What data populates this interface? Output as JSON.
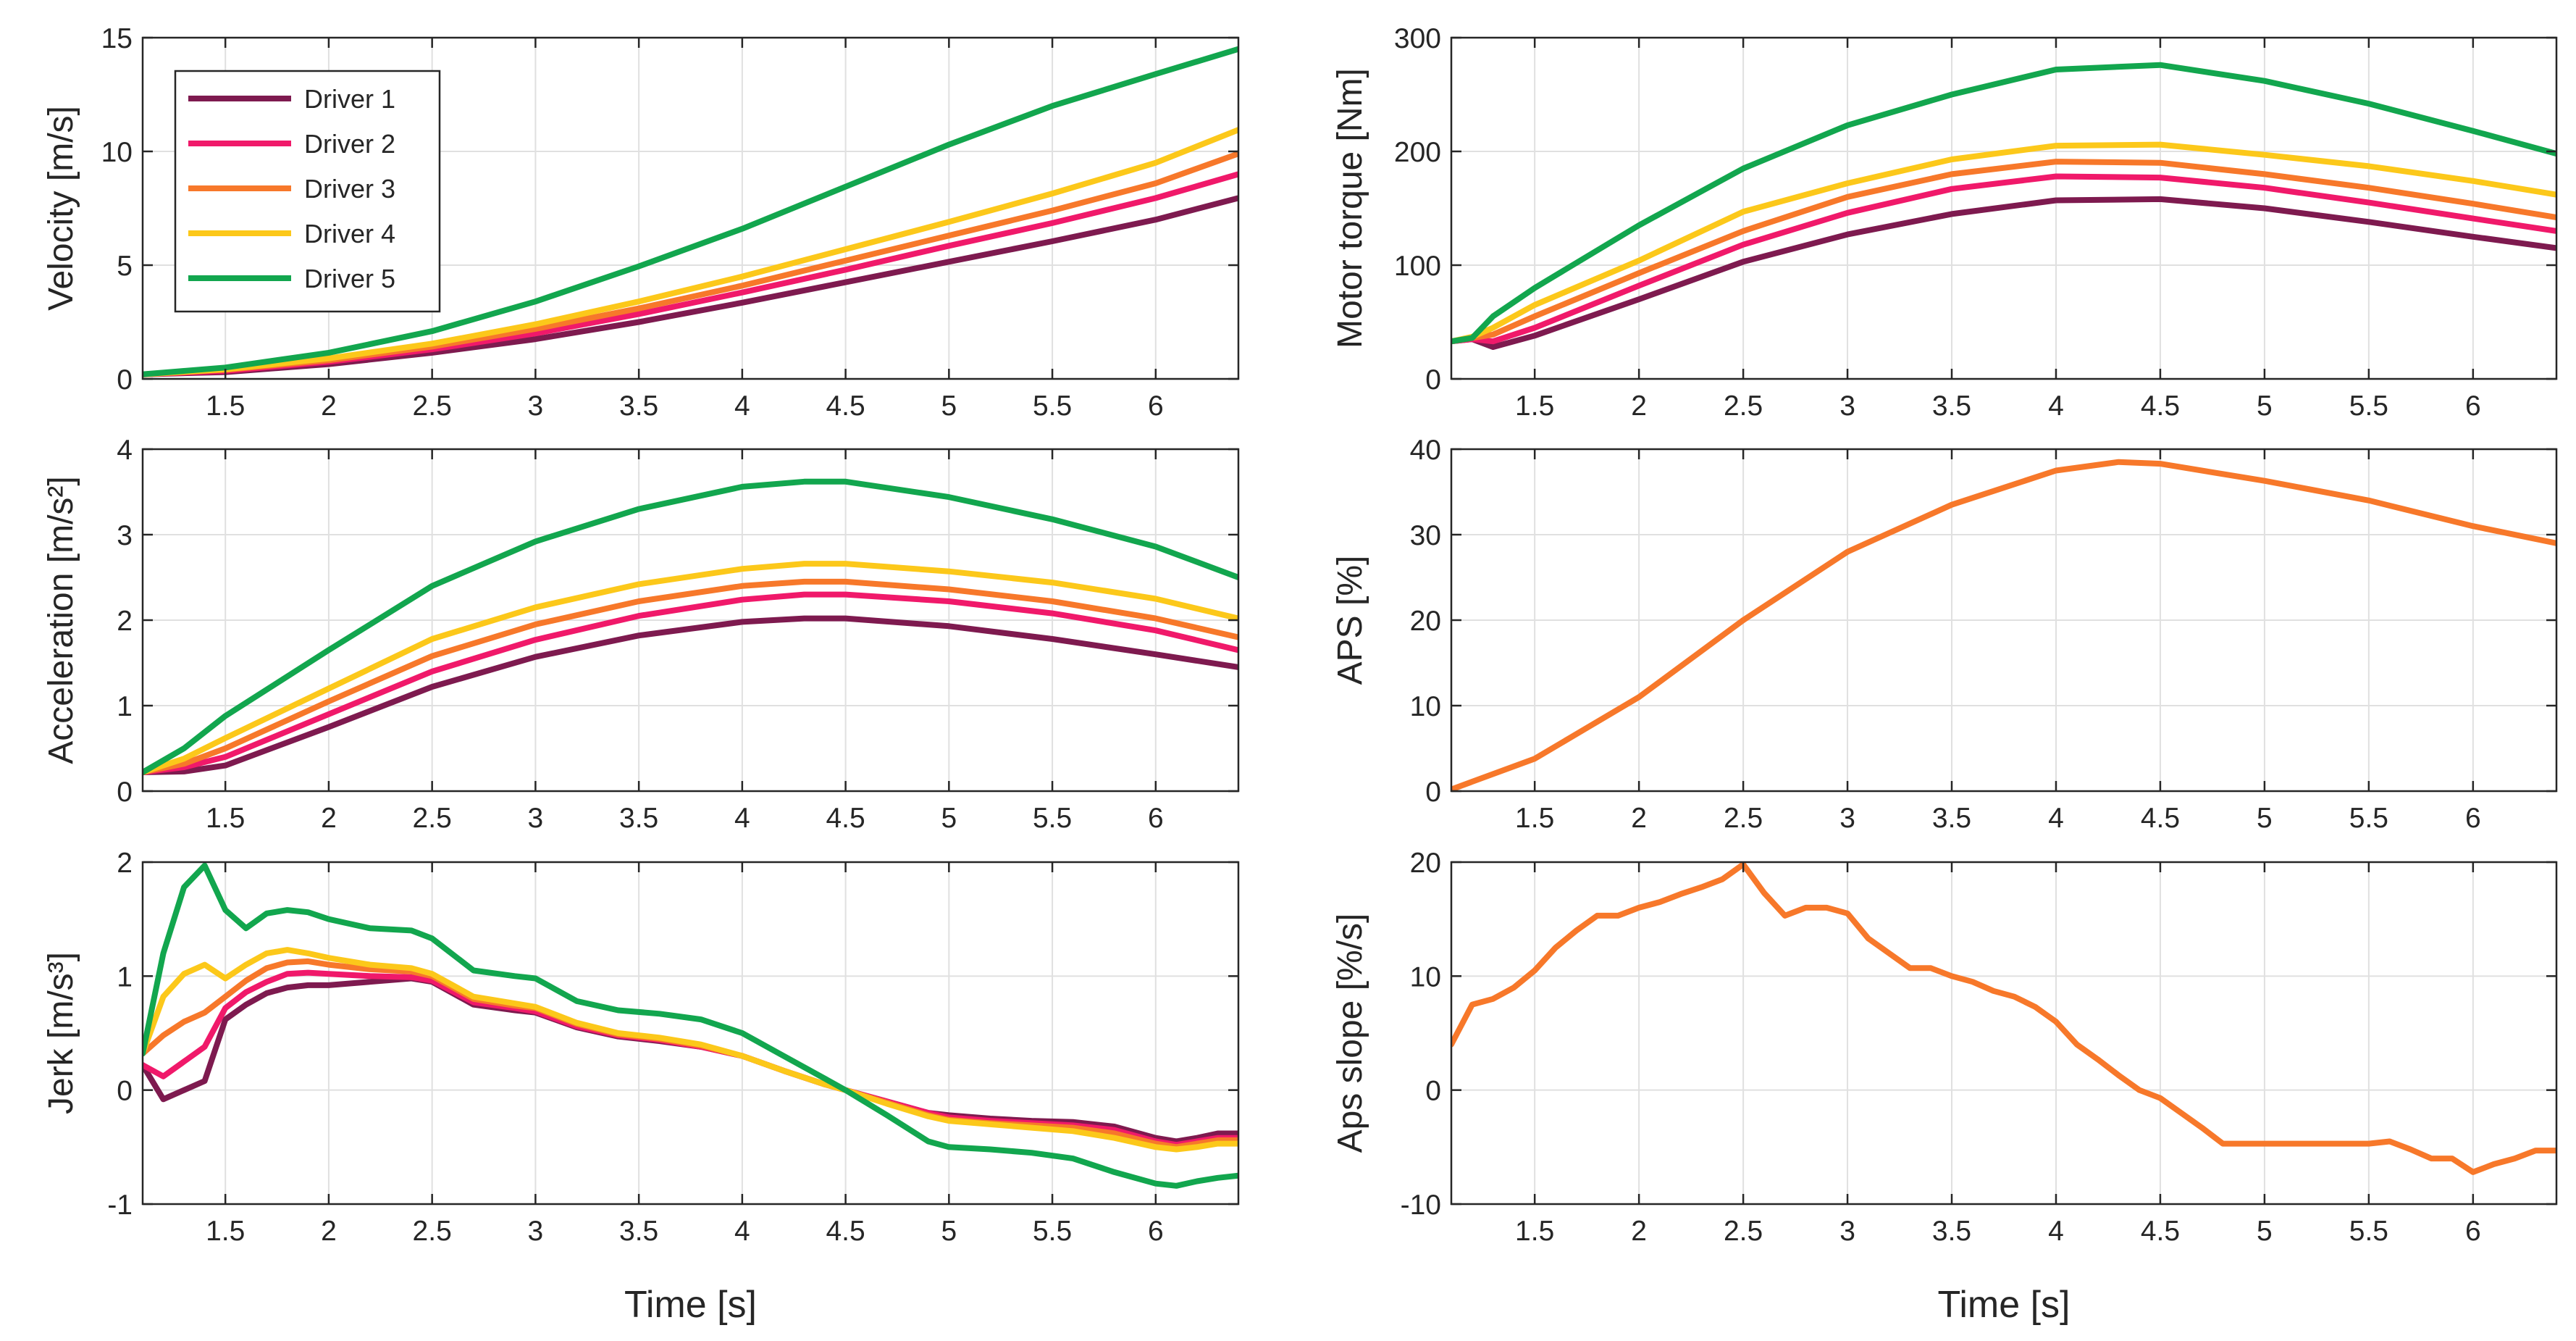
{
  "chart_data": [
    {
      "type": "line",
      "ylabel": "Velocity [m/s]",
      "xlabel": "",
      "xlim": [
        1.1,
        6.4
      ],
      "ylim": [
        0,
        15
      ],
      "xticks": [
        "1.5",
        "2",
        "2.5",
        "3",
        "3.5",
        "4",
        "4.5",
        "5",
        "5.5",
        "6"
      ],
      "yticks": [
        "0",
        "5",
        "10",
        "15"
      ],
      "grid": true,
      "legend": "top-left",
      "x": [
        1.1,
        1.5,
        2,
        2.5,
        3,
        3.5,
        4,
        4.5,
        5,
        5.5,
        6,
        6.4
      ],
      "series": [
        {
          "name": "Driver 1",
          "color": "#7e1a4f",
          "values": [
            0.2,
            0.3,
            0.65,
            1.15,
            1.75,
            2.5,
            3.35,
            4.25,
            5.15,
            6.05,
            7.0,
            7.95
          ]
        },
        {
          "name": "Driver 2",
          "color": "#f0196a",
          "values": [
            0.2,
            0.35,
            0.75,
            1.3,
            2.0,
            2.85,
            3.8,
            4.8,
            5.85,
            6.85,
            7.95,
            9.0
          ]
        },
        {
          "name": "Driver 3",
          "color": "#f7782a",
          "values": [
            0.2,
            0.4,
            0.82,
            1.42,
            2.2,
            3.1,
            4.1,
            5.2,
            6.3,
            7.4,
            8.6,
            9.9
          ]
        },
        {
          "name": "Driver 4",
          "color": "#fcc81a",
          "values": [
            0.2,
            0.42,
            0.9,
            1.55,
            2.4,
            3.4,
            4.5,
            5.7,
            6.9,
            8.15,
            9.5,
            10.95
          ]
        },
        {
          "name": "Driver 5",
          "color": "#12a64e",
          "values": [
            0.2,
            0.5,
            1.15,
            2.1,
            3.4,
            4.95,
            6.6,
            8.45,
            10.3,
            12.0,
            13.4,
            14.5
          ]
        }
      ]
    },
    {
      "type": "line",
      "ylabel": "Motor torque [Nm]",
      "xlabel": "",
      "xlim": [
        1.1,
        6.4
      ],
      "ylim": [
        0,
        300
      ],
      "xticks": [
        "1.5",
        "2",
        "2.5",
        "3",
        "3.5",
        "4",
        "4.5",
        "5",
        "5.5",
        "6"
      ],
      "yticks": [
        "0",
        "100",
        "200",
        "300"
      ],
      "grid": true,
      "x": [
        1.1,
        1.2,
        1.3,
        1.5,
        2,
        2.5,
        3,
        3.5,
        4,
        4.5,
        5,
        5.5,
        6,
        6.4
      ],
      "series": [
        {
          "name": "Driver 1",
          "color": "#7e1a4f",
          "values": [
            33,
            35,
            28,
            38,
            70,
            103,
            127,
            145,
            157,
            158,
            150,
            138,
            125,
            115
          ]
        },
        {
          "name": "Driver 2",
          "color": "#f0196a",
          "values": [
            33,
            35,
            33,
            45,
            82,
            118,
            146,
            167,
            178,
            177,
            168,
            155,
            141,
            130
          ]
        },
        {
          "name": "Driver 3",
          "color": "#f7782a",
          "values": [
            33,
            36,
            39,
            55,
            93,
            130,
            160,
            180,
            191,
            190,
            180,
            168,
            154,
            142
          ]
        },
        {
          "name": "Driver 4",
          "color": "#fcc81a",
          "values": [
            33,
            37,
            45,
            65,
            104,
            147,
            172,
            193,
            205,
            206,
            197,
            187,
            174,
            162
          ]
        },
        {
          "name": "Driver 5",
          "color": "#12a64e",
          "values": [
            33,
            36,
            55,
            80,
            135,
            185,
            223,
            250,
            272,
            276,
            262,
            242,
            218,
            198
          ]
        }
      ]
    },
    {
      "type": "line",
      "ylabel": "Acceleration [m/s²]",
      "xlabel": "",
      "xlim": [
        1.1,
        6.4
      ],
      "ylim": [
        0,
        4
      ],
      "xticks": [
        "1.5",
        "2",
        "2.5",
        "3",
        "3.5",
        "4",
        "4.5",
        "5",
        "5.5",
        "6"
      ],
      "yticks": [
        "0",
        "1",
        "2",
        "3",
        "4"
      ],
      "grid": true,
      "x": [
        1.1,
        1.3,
        1.5,
        2,
        2.5,
        3,
        3.5,
        4,
        4.3,
        4.5,
        5,
        5.5,
        6,
        6.4
      ],
      "series": [
        {
          "name": "Driver 1",
          "color": "#7e1a4f",
          "values": [
            0.22,
            0.23,
            0.3,
            0.75,
            1.22,
            1.57,
            1.82,
            1.98,
            2.02,
            2.02,
            1.93,
            1.78,
            1.6,
            1.45
          ]
        },
        {
          "name": "Driver 2",
          "color": "#f0196a",
          "values": [
            0.22,
            0.28,
            0.4,
            0.9,
            1.4,
            1.77,
            2.05,
            2.24,
            2.3,
            2.3,
            2.22,
            2.08,
            1.88,
            1.65
          ]
        },
        {
          "name": "Driver 3",
          "color": "#f7782a",
          "values": [
            0.22,
            0.32,
            0.5,
            1.05,
            1.58,
            1.95,
            2.22,
            2.4,
            2.45,
            2.45,
            2.36,
            2.22,
            2.02,
            1.8
          ]
        },
        {
          "name": "Driver 4",
          "color": "#fcc81a",
          "values": [
            0.22,
            0.38,
            0.62,
            1.2,
            1.78,
            2.15,
            2.42,
            2.6,
            2.66,
            2.66,
            2.57,
            2.44,
            2.25,
            2.02
          ]
        },
        {
          "name": "Driver 5",
          "color": "#12a64e",
          "values": [
            0.22,
            0.5,
            0.88,
            1.65,
            2.4,
            2.92,
            3.3,
            3.56,
            3.62,
            3.62,
            3.44,
            3.18,
            2.86,
            2.5
          ]
        }
      ]
    },
    {
      "type": "line",
      "ylabel": "APS [%]",
      "xlabel": "",
      "xlim": [
        1.1,
        6.4
      ],
      "ylim": [
        0,
        40
      ],
      "xticks": [
        "1.5",
        "2",
        "2.5",
        "3",
        "3.5",
        "4",
        "4.5",
        "5",
        "5.5",
        "6"
      ],
      "yticks": [
        "0",
        "10",
        "20",
        "30",
        "40"
      ],
      "grid": true,
      "x": [
        1.1,
        1.5,
        2,
        2.5,
        3,
        3.5,
        4,
        4.3,
        4.5,
        5,
        5.5,
        6,
        6.4
      ],
      "series": [
        {
          "name": "",
          "color": "#f7782a",
          "values": [
            0.2,
            3.8,
            11,
            20,
            28,
            33.5,
            37.5,
            38.5,
            38.3,
            36.3,
            34,
            31,
            29
          ]
        }
      ]
    },
    {
      "type": "line",
      "ylabel": "Jerk [m/s³]",
      "xlabel": "Time [s]",
      "xlim": [
        1.1,
        6.4
      ],
      "ylim": [
        -1,
        2
      ],
      "xticks": [
        "1.5",
        "2",
        "2.5",
        "3",
        "3.5",
        "4",
        "4.5",
        "5",
        "5.5",
        "6"
      ],
      "yticks": [
        "-1",
        "0",
        "1",
        "2"
      ],
      "grid": true,
      "x": [
        1.1,
        1.2,
        1.3,
        1.4,
        1.5,
        1.6,
        1.7,
        1.8,
        1.9,
        2,
        2.2,
        2.4,
        2.5,
        2.7,
        2.9,
        3,
        3.2,
        3.4,
        3.6,
        3.8,
        4,
        4.2,
        4.4,
        4.5,
        4.7,
        4.9,
        5,
        5.2,
        5.4,
        5.6,
        5.8,
        6,
        6.1,
        6.2,
        6.3,
        6.4
      ],
      "series": [
        {
          "name": "Driver 1",
          "color": "#7e1a4f",
          "values": [
            0.22,
            -0.08,
            0.0,
            0.08,
            0.62,
            0.75,
            0.85,
            0.9,
            0.92,
            0.92,
            0.95,
            0.98,
            0.95,
            0.75,
            0.7,
            0.68,
            0.55,
            0.47,
            0.43,
            0.38,
            0.3,
            0.17,
            0.05,
            0.0,
            -0.1,
            -0.2,
            -0.22,
            -0.25,
            -0.27,
            -0.28,
            -0.32,
            -0.42,
            -0.45,
            -0.42,
            -0.38,
            -0.38
          ]
        },
        {
          "name": "Driver 2",
          "color": "#f0196a",
          "values": [
            0.22,
            0.12,
            0.25,
            0.38,
            0.72,
            0.86,
            0.95,
            1.02,
            1.03,
            1.02,
            1.0,
            0.99,
            0.96,
            0.77,
            0.72,
            0.69,
            0.56,
            0.48,
            0.44,
            0.38,
            0.3,
            0.17,
            0.05,
            0.0,
            -0.1,
            -0.2,
            -0.24,
            -0.27,
            -0.29,
            -0.31,
            -0.35,
            -0.45,
            -0.48,
            -0.45,
            -0.42,
            -0.42
          ]
        },
        {
          "name": "Driver 3",
          "color": "#f7782a",
          "values": [
            0.32,
            0.48,
            0.6,
            0.68,
            0.82,
            0.96,
            1.07,
            1.12,
            1.13,
            1.1,
            1.06,
            1.04,
            1.0,
            0.8,
            0.74,
            0.72,
            0.58,
            0.49,
            0.45,
            0.39,
            0.3,
            0.17,
            0.05,
            0.0,
            -0.11,
            -0.22,
            -0.26,
            -0.29,
            -0.31,
            -0.33,
            -0.38,
            -0.47,
            -0.5,
            -0.47,
            -0.44,
            -0.44
          ]
        },
        {
          "name": "Driver 4",
          "color": "#fcc81a",
          "values": [
            0.32,
            0.82,
            1.02,
            1.1,
            0.98,
            1.1,
            1.2,
            1.23,
            1.2,
            1.16,
            1.1,
            1.07,
            1.02,
            0.82,
            0.76,
            0.73,
            0.59,
            0.5,
            0.46,
            0.4,
            0.3,
            0.17,
            0.05,
            0.0,
            -0.12,
            -0.23,
            -0.27,
            -0.3,
            -0.33,
            -0.36,
            -0.42,
            -0.5,
            -0.52,
            -0.5,
            -0.47,
            -0.47
          ]
        },
        {
          "name": "Driver 5",
          "color": "#12a64e",
          "values": [
            0.32,
            1.2,
            1.78,
            1.97,
            1.58,
            1.42,
            1.55,
            1.58,
            1.56,
            1.5,
            1.42,
            1.4,
            1.33,
            1.05,
            1.0,
            0.98,
            0.78,
            0.7,
            0.67,
            0.62,
            0.5,
            0.3,
            0.1,
            0.0,
            -0.22,
            -0.45,
            -0.5,
            -0.52,
            -0.55,
            -0.6,
            -0.72,
            -0.82,
            -0.84,
            -0.8,
            -0.77,
            -0.75
          ]
        }
      ]
    },
    {
      "type": "line",
      "ylabel": "Aps slope [%/s]",
      "xlabel": "Time [s]",
      "xlim": [
        1.1,
        6.4
      ],
      "ylim": [
        -10,
        20
      ],
      "xticks": [
        "1.5",
        "2",
        "2.5",
        "3",
        "3.5",
        "4",
        "4.5",
        "5",
        "5.5",
        "6"
      ],
      "yticks": [
        "-10",
        "0",
        "10",
        "20"
      ],
      "grid": true,
      "x": [
        1.1,
        1.2,
        1.3,
        1.4,
        1.5,
        1.6,
        1.7,
        1.8,
        1.9,
        2,
        2.1,
        2.2,
        2.3,
        2.4,
        2.5,
        2.6,
        2.7,
        2.8,
        2.9,
        3,
        3.1,
        3.2,
        3.3,
        3.4,
        3.5,
        3.6,
        3.7,
        3.8,
        3.9,
        4,
        4.1,
        4.2,
        4.3,
        4.4,
        4.5,
        4.6,
        4.7,
        4.8,
        5,
        5.5,
        5.6,
        5.7,
        5.8,
        5.9,
        6,
        6.1,
        6.2,
        6.3,
        6.4
      ],
      "series": [
        {
          "name": "",
          "color": "#f7782a",
          "values": [
            4,
            7.5,
            8,
            9,
            10.5,
            12.5,
            14,
            15.3,
            15.3,
            16,
            16.5,
            17.2,
            17.8,
            18.5,
            19.8,
            17.3,
            15.3,
            16,
            16,
            15.5,
            13.3,
            12,
            10.7,
            10.7,
            10,
            9.5,
            8.7,
            8.2,
            7.3,
            6,
            4,
            2.7,
            1.3,
            0,
            -0.7,
            -2,
            -3.3,
            -4.7,
            -4.7,
            -4.7,
            -4.5,
            -5.2,
            -6,
            -6,
            -7.2,
            -6.5,
            -6,
            -5.3,
            -5.3
          ]
        }
      ]
    }
  ]
}
